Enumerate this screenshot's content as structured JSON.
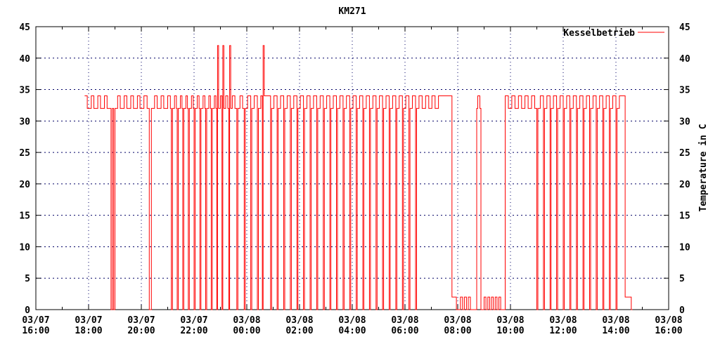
{
  "title": "KM271",
  "legend": {
    "label": "Kesselbetrieb"
  },
  "colors": {
    "series": "#ff0000",
    "grid": "#000066",
    "frame": "#000000",
    "background": "#ffffff",
    "text": "#000000"
  },
  "chart_data": {
    "type": "line",
    "step": true,
    "title": "KM271",
    "series_name": "Kesselbetrieb",
    "ylabel_right": "Temperature in C",
    "ylim": [
      0,
      45
    ],
    "yticks": [
      0,
      5,
      10,
      15,
      20,
      25,
      30,
      35,
      40,
      45
    ],
    "x_hours_span": 24,
    "x_major_interval_hours": 2,
    "x_minor_interval_hours": 1,
    "grid": true,
    "legend_position": "top-right-inside",
    "value_levels_observed": {
      "high_pulse": 42,
      "on": 34,
      "base": 32,
      "standby": 2,
      "off": 0
    },
    "xticks": [
      {
        "t": 0,
        "date": "03/07",
        "time": "16:00"
      },
      {
        "t": 2,
        "date": "03/07",
        "time": "18:00"
      },
      {
        "t": 4,
        "date": "03/07",
        "time": "20:00"
      },
      {
        "t": 6,
        "date": "03/07",
        "time": "22:00"
      },
      {
        "t": 8,
        "date": "03/08",
        "time": "00:00"
      },
      {
        "t": 10,
        "date": "03/08",
        "time": "02:00"
      },
      {
        "t": 12,
        "date": "03/08",
        "time": "04:00"
      },
      {
        "t": 14,
        "date": "03/08",
        "time": "06:00"
      },
      {
        "t": 16,
        "date": "03/08",
        "time": "08:00"
      },
      {
        "t": 18,
        "date": "03/08",
        "time": "10:00"
      },
      {
        "t": 20,
        "date": "03/08",
        "time": "12:00"
      },
      {
        "t": 22,
        "date": "03/08",
        "time": "14:00"
      },
      {
        "t": 24,
        "date": "03/08",
        "time": "16:00"
      }
    ],
    "steps_units": "hours after 03/07 16:00, value in C",
    "steps": [
      [
        1.85,
        34
      ],
      [
        1.95,
        32
      ],
      [
        2.1,
        34
      ],
      [
        2.2,
        32
      ],
      [
        2.35,
        34
      ],
      [
        2.45,
        32
      ],
      [
        2.6,
        34
      ],
      [
        2.7,
        32
      ],
      [
        2.85,
        0
      ],
      [
        2.9,
        32
      ],
      [
        2.95,
        0
      ],
      [
        3.0,
        32
      ],
      [
        3.1,
        34
      ],
      [
        3.2,
        32
      ],
      [
        3.35,
        34
      ],
      [
        3.45,
        32
      ],
      [
        3.6,
        34
      ],
      [
        3.7,
        32
      ],
      [
        3.85,
        34
      ],
      [
        3.95,
        32
      ],
      [
        4.1,
        34
      ],
      [
        4.22,
        32
      ],
      [
        4.3,
        0
      ],
      [
        4.38,
        32
      ],
      [
        4.5,
        34
      ],
      [
        4.6,
        32
      ],
      [
        4.75,
        34
      ],
      [
        4.85,
        32
      ],
      [
        5.0,
        34
      ],
      [
        5.1,
        32
      ],
      [
        5.14,
        0
      ],
      [
        5.18,
        32
      ],
      [
        5.26,
        34
      ],
      [
        5.33,
        32
      ],
      [
        5.36,
        0
      ],
      [
        5.4,
        32
      ],
      [
        5.48,
        34
      ],
      [
        5.54,
        32
      ],
      [
        5.57,
        0
      ],
      [
        5.61,
        32
      ],
      [
        5.69,
        34
      ],
      [
        5.75,
        32
      ],
      [
        5.78,
        0
      ],
      [
        5.82,
        32
      ],
      [
        5.9,
        34
      ],
      [
        5.97,
        32
      ],
      [
        6.0,
        0
      ],
      [
        6.04,
        32
      ],
      [
        6.12,
        34
      ],
      [
        6.19,
        32
      ],
      [
        6.22,
        0
      ],
      [
        6.26,
        32
      ],
      [
        6.34,
        34
      ],
      [
        6.41,
        32
      ],
      [
        6.44,
        0
      ],
      [
        6.48,
        32
      ],
      [
        6.56,
        34
      ],
      [
        6.62,
        32
      ],
      [
        6.65,
        0
      ],
      [
        6.69,
        32
      ],
      [
        6.77,
        34
      ],
      [
        6.83,
        32
      ],
      [
        6.86,
        0
      ],
      [
        6.89,
        42
      ],
      [
        6.93,
        32
      ],
      [
        7.0,
        34
      ],
      [
        7.06,
        0
      ],
      [
        7.09,
        42
      ],
      [
        7.13,
        32
      ],
      [
        7.2,
        34
      ],
      [
        7.28,
        32
      ],
      [
        7.32,
        0
      ],
      [
        7.35,
        42
      ],
      [
        7.39,
        32
      ],
      [
        7.45,
        34
      ],
      [
        7.55,
        32
      ],
      [
        7.62,
        0
      ],
      [
        7.66,
        32
      ],
      [
        7.74,
        34
      ],
      [
        7.84,
        32
      ],
      [
        7.9,
        0
      ],
      [
        7.94,
        32
      ],
      [
        8.03,
        34
      ],
      [
        8.15,
        0
      ],
      [
        8.19,
        32
      ],
      [
        8.28,
        34
      ],
      [
        8.4,
        0
      ],
      [
        8.44,
        32
      ],
      [
        8.53,
        34
      ],
      [
        8.59,
        0
      ],
      [
        8.62,
        42
      ],
      [
        8.66,
        34
      ],
      [
        8.9,
        0
      ],
      [
        8.94,
        32
      ],
      [
        9.03,
        34
      ],
      [
        9.15,
        0
      ],
      [
        9.19,
        32
      ],
      [
        9.28,
        34
      ],
      [
        9.4,
        0
      ],
      [
        9.44,
        32
      ],
      [
        9.53,
        34
      ],
      [
        9.65,
        0
      ],
      [
        9.69,
        32
      ],
      [
        9.78,
        34
      ],
      [
        9.9,
        0
      ],
      [
        9.94,
        32
      ],
      [
        10.03,
        34
      ],
      [
        10.15,
        0
      ],
      [
        10.19,
        32
      ],
      [
        10.28,
        34
      ],
      [
        10.4,
        0
      ],
      [
        10.44,
        32
      ],
      [
        10.53,
        34
      ],
      [
        10.65,
        0
      ],
      [
        10.69,
        32
      ],
      [
        10.78,
        34
      ],
      [
        10.9,
        0
      ],
      [
        10.94,
        32
      ],
      [
        11.03,
        34
      ],
      [
        11.15,
        0
      ],
      [
        11.19,
        32
      ],
      [
        11.28,
        34
      ],
      [
        11.4,
        0
      ],
      [
        11.44,
        32
      ],
      [
        11.53,
        34
      ],
      [
        11.65,
        0
      ],
      [
        11.69,
        32
      ],
      [
        11.78,
        34
      ],
      [
        11.9,
        0
      ],
      [
        11.94,
        32
      ],
      [
        12.03,
        34
      ],
      [
        12.15,
        0
      ],
      [
        12.19,
        32
      ],
      [
        12.28,
        34
      ],
      [
        12.4,
        0
      ],
      [
        12.44,
        32
      ],
      [
        12.53,
        34
      ],
      [
        12.65,
        0
      ],
      [
        12.69,
        32
      ],
      [
        12.78,
        34
      ],
      [
        12.9,
        0
      ],
      [
        12.94,
        32
      ],
      [
        13.03,
        34
      ],
      [
        13.15,
        0
      ],
      [
        13.19,
        32
      ],
      [
        13.28,
        34
      ],
      [
        13.4,
        0
      ],
      [
        13.44,
        32
      ],
      [
        13.53,
        34
      ],
      [
        13.65,
        0
      ],
      [
        13.69,
        32
      ],
      [
        13.78,
        34
      ],
      [
        13.9,
        0
      ],
      [
        13.94,
        32
      ],
      [
        14.03,
        34
      ],
      [
        14.15,
        0
      ],
      [
        14.19,
        32
      ],
      [
        14.28,
        34
      ],
      [
        14.4,
        0
      ],
      [
        14.44,
        32
      ],
      [
        14.53,
        34
      ],
      [
        14.65,
        32
      ],
      [
        14.78,
        34
      ],
      [
        14.9,
        32
      ],
      [
        15.02,
        34
      ],
      [
        15.14,
        32
      ],
      [
        15.27,
        34
      ],
      [
        15.78,
        2
      ],
      [
        15.95,
        0
      ],
      [
        16.1,
        2
      ],
      [
        16.18,
        0
      ],
      [
        16.25,
        2
      ],
      [
        16.33,
        0
      ],
      [
        16.4,
        2
      ],
      [
        16.48,
        0
      ],
      [
        16.72,
        32
      ],
      [
        16.76,
        34
      ],
      [
        16.84,
        32
      ],
      [
        16.88,
        0
      ],
      [
        17.0,
        2
      ],
      [
        17.07,
        0
      ],
      [
        17.14,
        2
      ],
      [
        17.21,
        0
      ],
      [
        17.28,
        2
      ],
      [
        17.35,
        0
      ],
      [
        17.42,
        2
      ],
      [
        17.49,
        0
      ],
      [
        17.56,
        2
      ],
      [
        17.63,
        0
      ],
      [
        17.8,
        34
      ],
      [
        17.92,
        32
      ],
      [
        18.05,
        34
      ],
      [
        18.17,
        32
      ],
      [
        18.3,
        34
      ],
      [
        18.42,
        32
      ],
      [
        18.55,
        34
      ],
      [
        18.67,
        32
      ],
      [
        18.8,
        34
      ],
      [
        18.92,
        32
      ],
      [
        19.0,
        0
      ],
      [
        19.04,
        32
      ],
      [
        19.13,
        34
      ],
      [
        19.25,
        0
      ],
      [
        19.29,
        32
      ],
      [
        19.38,
        34
      ],
      [
        19.5,
        0
      ],
      [
        19.54,
        32
      ],
      [
        19.63,
        34
      ],
      [
        19.75,
        0
      ],
      [
        19.79,
        32
      ],
      [
        19.88,
        34
      ],
      [
        20.0,
        0
      ],
      [
        20.04,
        32
      ],
      [
        20.13,
        34
      ],
      [
        20.25,
        0
      ],
      [
        20.29,
        32
      ],
      [
        20.38,
        34
      ],
      [
        20.5,
        0
      ],
      [
        20.54,
        32
      ],
      [
        20.63,
        34
      ],
      [
        20.75,
        0
      ],
      [
        20.79,
        32
      ],
      [
        20.88,
        34
      ],
      [
        21.0,
        0
      ],
      [
        21.04,
        32
      ],
      [
        21.13,
        34
      ],
      [
        21.25,
        0
      ],
      [
        21.29,
        32
      ],
      [
        21.38,
        34
      ],
      [
        21.5,
        0
      ],
      [
        21.54,
        32
      ],
      [
        21.63,
        34
      ],
      [
        21.75,
        0
      ],
      [
        21.79,
        32
      ],
      [
        21.88,
        34
      ],
      [
        22.0,
        0
      ],
      [
        22.04,
        32
      ],
      [
        22.13,
        34
      ],
      [
        22.35,
        2
      ],
      [
        22.58,
        0
      ],
      [
        22.62,
        0
      ]
    ]
  }
}
